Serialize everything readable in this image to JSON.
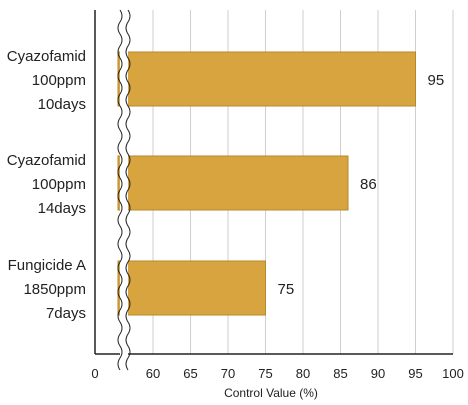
{
  "chart_data": {
    "type": "bar",
    "orientation": "horizontal",
    "categories": [
      [
        "Cyazofamid",
        "100ppm",
        "10days"
      ],
      [
        "Cyazofamid",
        "100ppm",
        "14days"
      ],
      [
        "Fungicide A",
        "1850ppm",
        "7days"
      ]
    ],
    "values": [
      95,
      86,
      75
    ],
    "value_labels": [
      "95",
      "86",
      "75"
    ],
    "xlabel": "Control Value (%)",
    "ylabel": "",
    "xlim": [
      0,
      100
    ],
    "axis_break": true,
    "x_ticks": [
      0,
      60,
      65,
      70,
      75,
      80,
      85,
      90,
      95,
      100
    ],
    "x_tick_labels": [
      "0",
      "60",
      "65",
      "70",
      "75",
      "80",
      "85",
      "90",
      "95",
      "100"
    ],
    "grid": "vertical",
    "colors": {
      "bar": "#d8a43f",
      "bar_stroke": "#b8872a",
      "grid": "#cfcfcf",
      "axis": "#222222"
    }
  }
}
